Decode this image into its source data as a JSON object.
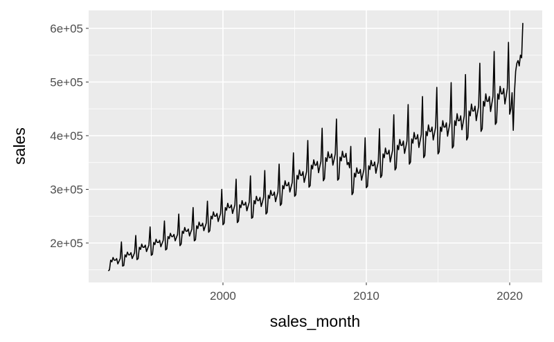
{
  "chart_data": {
    "type": "line",
    "x_label": "sales_month",
    "y_label": "sales",
    "color": "#000000",
    "grid": true,
    "xlim": [
      1990.63,
      2022.27
    ],
    "xticks": [
      2000,
      2010,
      2020
    ],
    "ylim": [
      126450,
      633500
    ],
    "yticks": [
      {
        "value": 200000,
        "label": "2e+05"
      },
      {
        "value": 300000,
        "label": "3e+05"
      },
      {
        "value": 400000,
        "label": "4e+05"
      },
      {
        "value": 500000,
        "label": "5e+05"
      },
      {
        "value": 600000,
        "label": "6e+05"
      }
    ],
    "x": [
      1992,
      1992.083,
      1992.167,
      1992.25,
      1992.333,
      1992.417,
      1992.5,
      1992.583,
      1992.667,
      1992.75,
      1992.833,
      1992.917,
      1993,
      1993.083,
      1993.167,
      1993.25,
      1993.333,
      1993.417,
      1993.5,
      1993.583,
      1993.667,
      1993.75,
      1993.833,
      1993.917,
      1994,
      1994.083,
      1994.167,
      1994.25,
      1994.333,
      1994.417,
      1994.5,
      1994.583,
      1994.667,
      1994.75,
      1994.833,
      1994.917,
      1995,
      1995.083,
      1995.167,
      1995.25,
      1995.333,
      1995.417,
      1995.5,
      1995.583,
      1995.667,
      1995.75,
      1995.833,
      1995.917,
      1996,
      1996.083,
      1996.167,
      1996.25,
      1996.333,
      1996.417,
      1996.5,
      1996.583,
      1996.667,
      1996.75,
      1996.833,
      1996.917,
      1997,
      1997.083,
      1997.167,
      1997.25,
      1997.333,
      1997.417,
      1997.5,
      1997.583,
      1997.667,
      1997.75,
      1997.833,
      1997.917,
      1998,
      1998.083,
      1998.167,
      1998.25,
      1998.333,
      1998.417,
      1998.5,
      1998.583,
      1998.667,
      1998.75,
      1998.833,
      1998.917,
      1999,
      1999.083,
      1999.167,
      1999.25,
      1999.333,
      1999.417,
      1999.5,
      1999.583,
      1999.667,
      1999.75,
      1999.833,
      1999.917,
      2000,
      2000.083,
      2000.167,
      2000.25,
      2000.333,
      2000.417,
      2000.5,
      2000.583,
      2000.667,
      2000.75,
      2000.833,
      2000.917,
      2001,
      2001.083,
      2001.167,
      2001.25,
      2001.333,
      2001.417,
      2001.5,
      2001.583,
      2001.667,
      2001.75,
      2001.833,
      2001.917,
      2002,
      2002.083,
      2002.167,
      2002.25,
      2002.333,
      2002.417,
      2002.5,
      2002.583,
      2002.667,
      2002.75,
      2002.833,
      2002.917,
      2003,
      2003.083,
      2003.167,
      2003.25,
      2003.333,
      2003.417,
      2003.5,
      2003.583,
      2003.667,
      2003.75,
      2003.833,
      2003.917,
      2004,
      2004.083,
      2004.167,
      2004.25,
      2004.333,
      2004.417,
      2004.5,
      2004.583,
      2004.667,
      2004.75,
      2004.833,
      2004.917,
      2005,
      2005.083,
      2005.167,
      2005.25,
      2005.333,
      2005.417,
      2005.5,
      2005.583,
      2005.667,
      2005.75,
      2005.833,
      2005.917,
      2006,
      2006.083,
      2006.167,
      2006.25,
      2006.333,
      2006.417,
      2006.5,
      2006.583,
      2006.667,
      2006.75,
      2006.833,
      2006.917,
      2007,
      2007.083,
      2007.167,
      2007.25,
      2007.333,
      2007.417,
      2007.5,
      2007.583,
      2007.667,
      2007.75,
      2007.833,
      2007.917,
      2008,
      2008.083,
      2008.167,
      2008.25,
      2008.333,
      2008.417,
      2008.5,
      2008.583,
      2008.667,
      2008.75,
      2008.833,
      2008.917,
      2009,
      2009.083,
      2009.167,
      2009.25,
      2009.333,
      2009.417,
      2009.5,
      2009.583,
      2009.667,
      2009.75,
      2009.833,
      2009.917,
      2010,
      2010.083,
      2010.167,
      2010.25,
      2010.333,
      2010.417,
      2010.5,
      2010.583,
      2010.667,
      2010.75,
      2010.833,
      2010.917,
      2011,
      2011.083,
      2011.167,
      2011.25,
      2011.333,
      2011.417,
      2011.5,
      2011.583,
      2011.667,
      2011.75,
      2011.833,
      2011.917,
      2012,
      2012.083,
      2012.167,
      2012.25,
      2012.333,
      2012.417,
      2012.5,
      2012.583,
      2012.667,
      2012.75,
      2012.833,
      2012.917,
      2013,
      2013.083,
      2013.167,
      2013.25,
      2013.333,
      2013.417,
      2013.5,
      2013.583,
      2013.667,
      2013.75,
      2013.833,
      2013.917,
      2014,
      2014.083,
      2014.167,
      2014.25,
      2014.333,
      2014.417,
      2014.5,
      2014.583,
      2014.667,
      2014.75,
      2014.833,
      2014.917,
      2015,
      2015.083,
      2015.167,
      2015.25,
      2015.333,
      2015.417,
      2015.5,
      2015.583,
      2015.667,
      2015.75,
      2015.833,
      2015.917,
      2016,
      2016.083,
      2016.167,
      2016.25,
      2016.333,
      2016.417,
      2016.5,
      2016.583,
      2016.667,
      2016.75,
      2016.833,
      2016.917,
      2017,
      2017.083,
      2017.167,
      2017.25,
      2017.333,
      2017.417,
      2017.5,
      2017.583,
      2017.667,
      2017.75,
      2017.833,
      2017.917,
      2018,
      2018.083,
      2018.167,
      2018.25,
      2018.333,
      2018.417,
      2018.5,
      2018.583,
      2018.667,
      2018.75,
      2018.833,
      2018.917,
      2019,
      2019.083,
      2019.167,
      2019.25,
      2019.333,
      2019.417,
      2019.5,
      2019.583,
      2019.667,
      2019.75,
      2019.833,
      2019.917,
      2020,
      2020.083,
      2020.167,
      2020.25,
      2020.333,
      2020.417,
      2020.5,
      2020.583,
      2020.667,
      2020.75,
      2020.833,
      2020.917
    ],
    "values": [
      148000,
      150000,
      168000,
      165000,
      173000,
      168000,
      168000,
      171000,
      161000,
      166000,
      171000,
      202000,
      157000,
      158000,
      178000,
      174000,
      183000,
      178000,
      178000,
      182000,
      171000,
      176000,
      182000,
      214000,
      169000,
      171000,
      192000,
      188000,
      198000,
      192000,
      192000,
      196000,
      184000,
      190000,
      196000,
      230000,
      177000,
      179000,
      201000,
      197000,
      207000,
      201000,
      201000,
      205000,
      193000,
      199000,
      205000,
      241000,
      187000,
      189000,
      212000,
      208000,
      218000,
      212000,
      212000,
      216000,
      204000,
      210000,
      216000,
      254000,
      195000,
      198000,
      222000,
      218000,
      229000,
      222000,
      222000,
      226000,
      213000,
      220000,
      226000,
      266000,
      204000,
      206000,
      232000,
      227000,
      239000,
      232000,
      232000,
      237000,
      223000,
      230000,
      237000,
      278000,
      220000,
      223000,
      250000,
      245000,
      258000,
      250000,
      250000,
      255000,
      240000,
      248000,
      255000,
      300000,
      234000,
      237000,
      266000,
      261000,
      274000,
      266000,
      266000,
      271000,
      255000,
      263000,
      271000,
      319000,
      238000,
      241000,
      271000,
      266000,
      279000,
      271000,
      271000,
      276000,
      260000,
      268000,
      276000,
      325000,
      246000,
      248000,
      279000,
      273000,
      287000,
      279000,
      279000,
      285000,
      268000,
      276000,
      285000,
      335000,
      254000,
      257000,
      289000,
      283000,
      298000,
      289000,
      289000,
      295000,
      277000,
      286000,
      295000,
      347000,
      270000,
      273000,
      307000,
      301000,
      316000,
      307000,
      307000,
      313000,
      295000,
      304000,
      313000,
      368000,
      287000,
      290000,
      326000,
      319000,
      336000,
      326000,
      326000,
      333000,
      313000,
      323000,
      333000,
      391000,
      304000,
      307000,
      345000,
      338000,
      355000,
      345000,
      345000,
      352000,
      331000,
      342000,
      352000,
      414000,
      316000,
      320000,
      359000,
      352000,
      370000,
      359000,
      359000,
      366000,
      345000,
      355000,
      366000,
      431000,
      317000,
      320000,
      360000,
      353000,
      371000,
      360000,
      360000,
      367000,
      346000,
      350000,
      340000,
      380000,
      290000,
      294000,
      330000,
      323000,
      340000,
      330000,
      330000,
      337000,
      317000,
      327000,
      337000,
      396000,
      303000,
      306000,
      344000,
      337000,
      354000,
      344000,
      344000,
      351000,
      330000,
      341000,
      351000,
      413000,
      322000,
      326000,
      366000,
      359000,
      377000,
      366000,
      366000,
      373000,
      351000,
      362000,
      373000,
      439000,
      336000,
      340000,
      382000,
      374000,
      393000,
      382000,
      382000,
      390000,
      367000,
      378000,
      390000,
      458000,
      347000,
      351000,
      394000,
      386000,
      406000,
      394000,
      394000,
      402000,
      378000,
      390000,
      402000,
      473000,
      359000,
      363000,
      408000,
      400000,
      420000,
      408000,
      408000,
      416000,
      392000,
      404000,
      416000,
      490000,
      366000,
      370000,
      416000,
      408000,
      428000,
      416000,
      416000,
      424000,
      399000,
      412000,
      424000,
      499000,
      377000,
      381000,
      428000,
      419000,
      441000,
      428000,
      428000,
      437000,
      411000,
      424000,
      437000,
      514000,
      392000,
      397000,
      446000,
      437000,
      459000,
      446000,
      446000,
      455000,
      428000,
      442000,
      455000,
      535000,
      408000,
      413000,
      464000,
      455000,
      478000,
      464000,
      464000,
      473000,
      445000,
      459000,
      473000,
      557000,
      421000,
      425000,
      478000,
      468000,
      492000,
      478000,
      478000,
      488000,
      459000,
      473000,
      488000,
      574000,
      440000,
      450000,
      480000,
      410000,
      480000,
      520000,
      535000,
      540000,
      530000,
      550000,
      545000,
      610000
    ]
  }
}
